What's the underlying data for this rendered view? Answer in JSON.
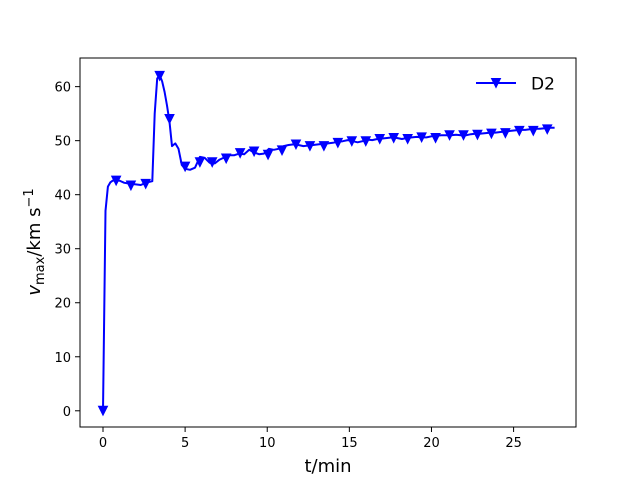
{
  "chart_data": {
    "type": "line",
    "title": "",
    "xlabel": "t/min",
    "ylabel_main": "v",
    "ylabel_sub": "max",
    "ylabel_unit": "/km s",
    "ylabel_exp": "−1",
    "xlim": [
      -1.4,
      28.8
    ],
    "ylim": [
      -3.0,
      65.3
    ],
    "xticks": [
      0,
      5,
      10,
      15,
      20,
      25
    ],
    "yticks": [
      0,
      10,
      20,
      30,
      40,
      50,
      60
    ],
    "grid": false,
    "legend_position": "upper right",
    "series": [
      {
        "name": "D2",
        "color": "#0000ff",
        "marker": "triangle-down",
        "x": [
          0.0,
          0.15,
          0.3,
          0.45,
          0.6,
          0.8,
          1.0,
          1.3,
          1.7,
          2.0,
          2.3,
          2.6,
          3.0,
          3.15,
          3.3,
          3.45,
          3.6,
          3.75,
          3.9,
          4.05,
          4.2,
          4.4,
          4.6,
          4.8,
          5.0,
          5.3,
          5.6,
          5.9,
          6.2,
          6.5,
          6.8,
          7.1,
          7.4,
          7.7,
          8.0,
          8.3,
          8.6,
          8.9,
          9.2,
          9.5,
          9.8,
          10.1,
          10.4,
          10.7,
          11.0,
          11.3,
          11.6,
          11.9,
          12.2,
          12.5,
          12.8,
          13.1,
          13.4,
          13.7,
          14.0,
          14.3,
          14.6,
          14.9,
          15.2,
          15.5,
          15.8,
          16.1,
          16.4,
          16.7,
          17.0,
          17.3,
          17.6,
          17.9,
          18.2,
          18.5,
          18.8,
          19.1,
          19.4,
          19.7,
          20.0,
          20.3,
          20.6,
          20.9,
          21.2,
          21.5,
          21.8,
          22.1,
          22.4,
          22.7,
          23.0,
          23.3,
          23.6,
          23.9,
          24.2,
          24.5,
          24.8,
          25.1,
          25.4,
          25.7,
          26.0,
          26.3,
          26.6,
          26.9,
          27.2,
          27.5
        ],
        "y": [
          0.0,
          37.0,
          41.5,
          42.3,
          42.6,
          42.6,
          42.6,
          42.2,
          42.0,
          41.9,
          41.8,
          42.2,
          42.5,
          55.0,
          61.5,
          62.1,
          61.0,
          59.0,
          56.5,
          53.5,
          49.0,
          49.5,
          48.5,
          45.5,
          44.8,
          44.6,
          45.0,
          47.0,
          46.8,
          45.9,
          45.8,
          46.5,
          46.9,
          47.3,
          47.3,
          47.6,
          47.5,
          48.3,
          47.8,
          47.5,
          47.6,
          48.5,
          48.3,
          48.5,
          49.0,
          49.2,
          49.3,
          49.2,
          49.0,
          49.1,
          49.2,
          49.3,
          49.4,
          49.5,
          49.6,
          49.8,
          49.9,
          50.1,
          49.9,
          49.7,
          49.9,
          50.2,
          50.1,
          50.3,
          50.4,
          50.5,
          50.6,
          50.5,
          50.3,
          50.5,
          50.6,
          50.7,
          50.6,
          50.6,
          50.8,
          50.9,
          51.0,
          51.0,
          51.0,
          51.1,
          51.0,
          51.0,
          51.2,
          51.3,
          51.3,
          51.4,
          51.5,
          51.5,
          51.6,
          51.7,
          51.8,
          51.9,
          52.0,
          52.0,
          52.1,
          52.2,
          52.2,
          52.3,
          52.4,
          52.4
        ],
        "marker_x": [
          0.0,
          0.8,
          1.7,
          2.6,
          3.45,
          4.05,
          5.0,
          5.9,
          6.65,
          7.5,
          8.35,
          9.2,
          10.05,
          10.9,
          11.75,
          12.6,
          13.45,
          14.3,
          15.15,
          16.0,
          16.85,
          17.7,
          18.55,
          19.4,
          20.25,
          21.1,
          21.95,
          22.8,
          23.65,
          24.5,
          25.35,
          26.2,
          27.05
        ],
        "marker_y": [
          0.0,
          42.6,
          41.7,
          42.0,
          62.0,
          54.0,
          45.2,
          46.0,
          46.0,
          46.7,
          47.7,
          48.0,
          47.4,
          48.2,
          49.3,
          49.0,
          49.0,
          49.6,
          49.9,
          49.9,
          50.3,
          50.5,
          50.3,
          50.6,
          50.5,
          51.0,
          51.0,
          51.1,
          51.3,
          51.4,
          51.8,
          51.8,
          52.1
        ]
      }
    ]
  }
}
